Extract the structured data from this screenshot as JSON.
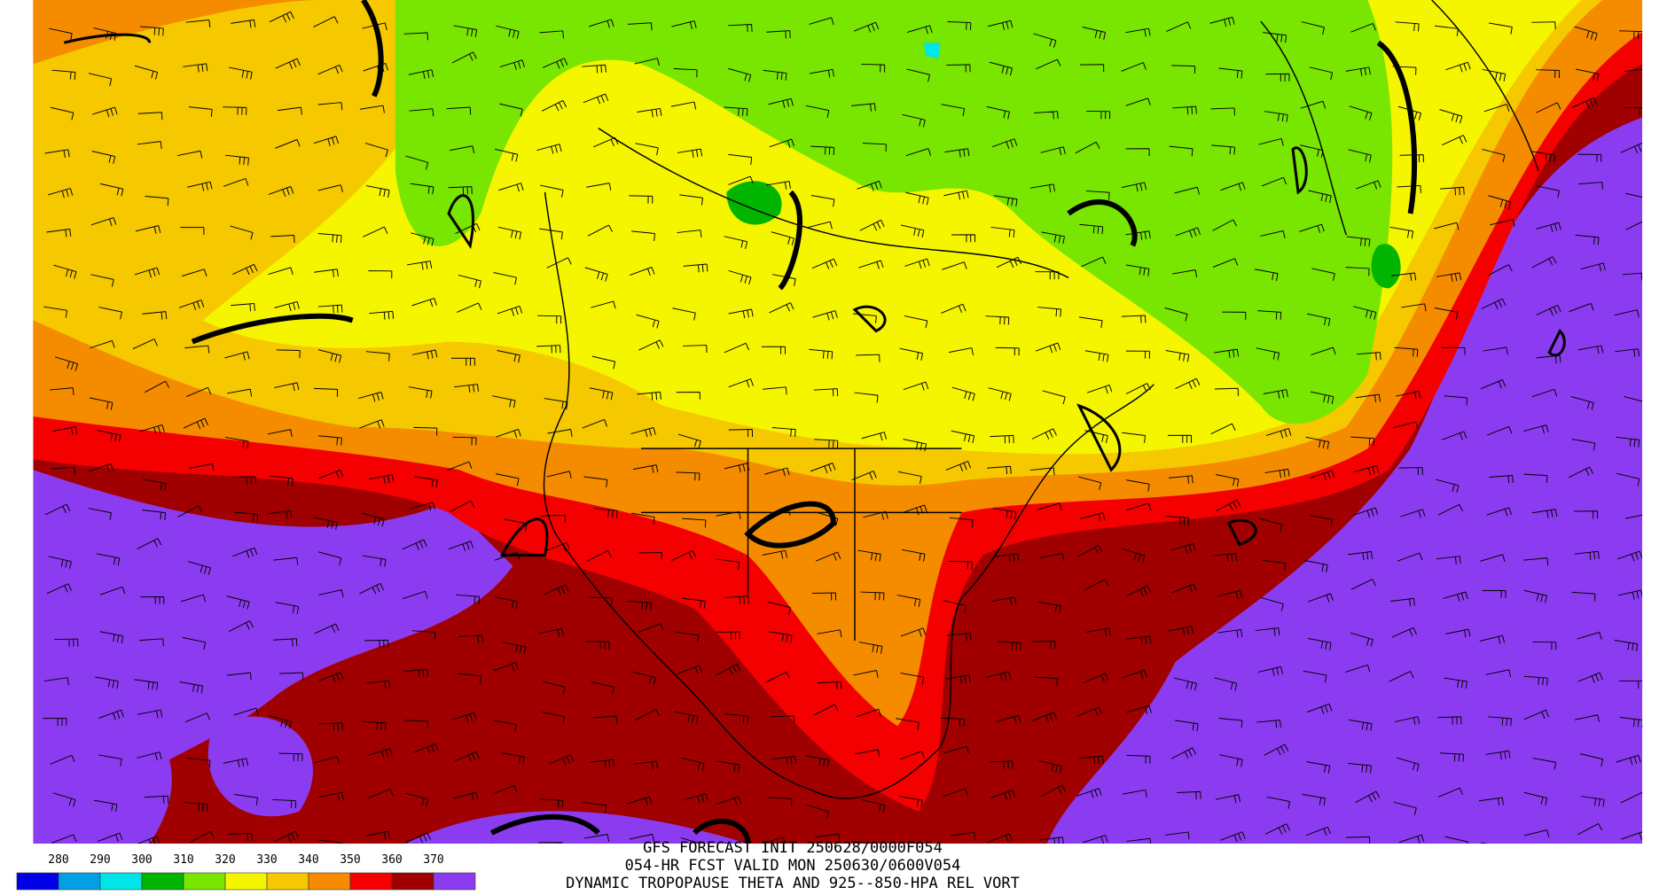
{
  "header": {
    "lines": [
      "GFS FORECAST INIT 250628/0000F054",
      "054-HR FCST VALID MON 250630/0600V054",
      "DYNAMIC TROPOPAUSE THETA AND 925--850-HPA REL VORT"
    ]
  },
  "legend": {
    "levels": [
      280,
      290,
      300,
      310,
      320,
      330,
      340,
      350,
      360,
      370
    ],
    "colors": [
      "#0000e6",
      "#00a0e6",
      "#00e6e6",
      "#00b400",
      "#78e600",
      "#f5f500",
      "#f5c800",
      "#f58c00",
      "#f50000",
      "#a00000",
      "#8c3cf0"
    ]
  }
}
